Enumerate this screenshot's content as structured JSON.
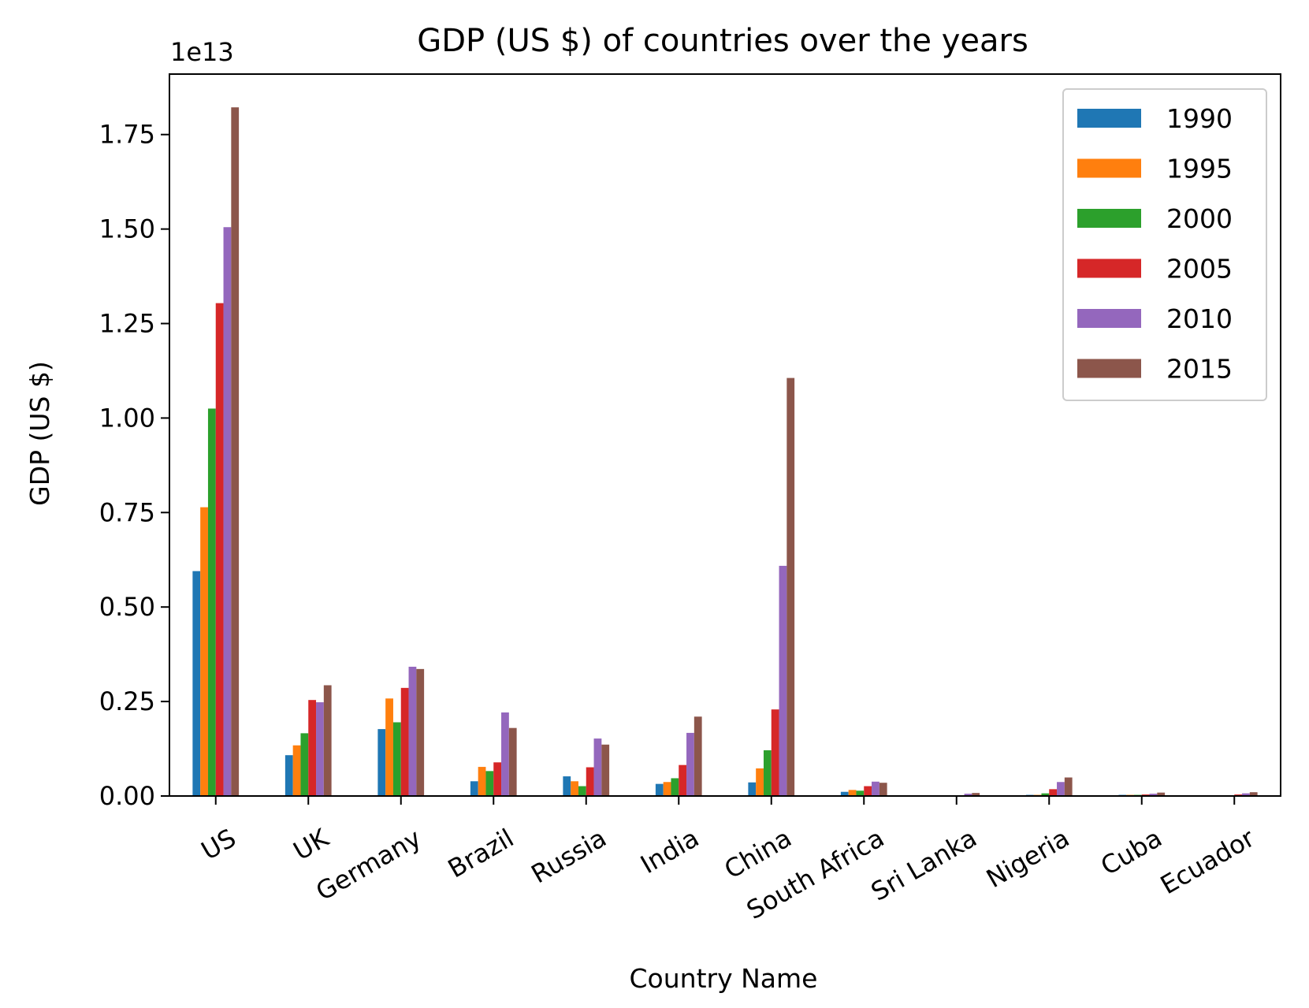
{
  "chart_data": {
    "type": "bar",
    "title": "GDP (US $) of countries over the years",
    "xlabel": "Country Name",
    "ylabel": "GDP (US $)",
    "y_offset_label": "1e13",
    "y_scale": 10000000000000.0,
    "ylim": [
      0,
      1.91
    ],
    "y_ticks": [
      0,
      0.25,
      0.5,
      0.75,
      1.0,
      1.25,
      1.5,
      1.75
    ],
    "y_tick_labels": [
      "0.00",
      "0.25",
      "0.50",
      "0.75",
      "1.00",
      "1.25",
      "1.50",
      "1.75"
    ],
    "grid": false,
    "legend_position": "top-right",
    "categories": [
      "US",
      "UK",
      "Germany",
      "Brazil",
      "Russia",
      "India",
      "China",
      "South Africa",
      "Sri Lanka",
      "Nigeria",
      "Cuba",
      "Ecuador"
    ],
    "series": [
      {
        "name": "1990",
        "color": "#1f77b4",
        "values": [
          0.595,
          0.108,
          0.177,
          0.039,
          0.052,
          0.032,
          0.036,
          0.011,
          0.001,
          0.003,
          0.003,
          0.002
        ]
      },
      {
        "name": "1995",
        "color": "#ff7f0e",
        "values": [
          0.764,
          0.134,
          0.258,
          0.077,
          0.039,
          0.037,
          0.073,
          0.016,
          0.001,
          0.003,
          0.003,
          0.002
        ]
      },
      {
        "name": "2000",
        "color": "#2ca02c",
        "values": [
          1.025,
          0.166,
          0.195,
          0.066,
          0.026,
          0.047,
          0.121,
          0.014,
          0.002,
          0.007,
          0.003,
          0.002
        ]
      },
      {
        "name": "2005",
        "color": "#d62728",
        "values": [
          1.304,
          0.254,
          0.286,
          0.089,
          0.076,
          0.082,
          0.229,
          0.026,
          0.002,
          0.018,
          0.004,
          0.004
        ]
      },
      {
        "name": "2010",
        "color": "#9467bd",
        "values": [
          1.505,
          0.248,
          0.342,
          0.221,
          0.152,
          0.167,
          0.609,
          0.038,
          0.006,
          0.037,
          0.006,
          0.007
        ]
      },
      {
        "name": "2015",
        "color": "#8c564b",
        "values": [
          1.822,
          0.293,
          0.336,
          0.18,
          0.136,
          0.21,
          1.106,
          0.035,
          0.008,
          0.049,
          0.009,
          0.01
        ]
      }
    ]
  }
}
